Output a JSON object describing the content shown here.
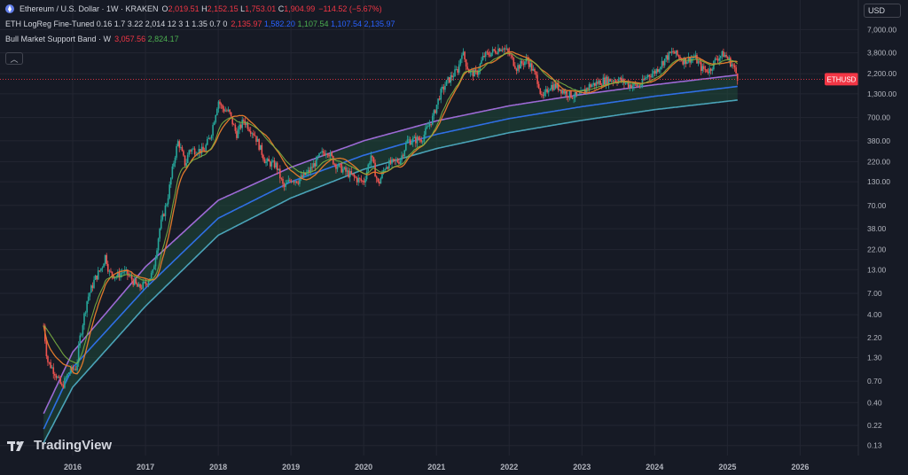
{
  "header": {
    "symbol_title": "Ethereum / U.S. Dollar · 1W · KRAKEN",
    "ohlc": [
      {
        "k": "O",
        "v": "2,019.51"
      },
      {
        "k": "H",
        "v": "2,152.15"
      },
      {
        "k": "L",
        "v": "1,753.01"
      },
      {
        "k": "C",
        "v": "1,904.99"
      }
    ],
    "change": "−114.52 (−5.67%)"
  },
  "indicators": [
    {
      "label": "ETH LogReg Fine-Tuned 0.16 1.7 3.22 2,014 12 3 1 1.35 0.7 0",
      "values": [
        {
          "v": "2,135.97",
          "color": "#f23645"
        },
        {
          "v": "1,582.20",
          "color": "#2962ff"
        },
        {
          "v": "1,107.54",
          "color": "#4caf50"
        },
        {
          "v": "1,107.54",
          "color": "#2962ff"
        },
        {
          "v": "2,135.97",
          "color": "#2962ff"
        }
      ]
    },
    {
      "label": "Bull Market Support Band · W",
      "values": [
        {
          "v": "3,057.56",
          "color": "#f23645"
        },
        {
          "v": "2,824.17",
          "color": "#4caf50"
        }
      ]
    }
  ],
  "currency": "USD",
  "brand": "TradingView",
  "colors": {
    "bg": "#161a25",
    "grid": "#232632",
    "axis_text": "#b2b5be",
    "up": "#26a69a",
    "down": "#ef5350",
    "price_label": "#f23645",
    "band_upper": "#9c6ad4",
    "band_mid": "#2f6fe4",
    "band_lower": "#4aa3b8",
    "band_fill": "#1f4a3a",
    "sma": "#e0792c",
    "ema": "#7cb342"
  },
  "chart_data": {
    "type": "candlestick",
    "scale": "log",
    "ylim": [
      0.1,
      10000
    ],
    "xlim": [
      2015.0,
      2026.8
    ],
    "x_ticks": [
      "2016",
      "2017",
      "2018",
      "2019",
      "2020",
      "2021",
      "2022",
      "2023",
      "2024",
      "2025",
      "2026"
    ],
    "y_ticks": [
      "7,000.00",
      "3,800.00",
      "2,200.00",
      "1,300.00",
      "700.00",
      "380.00",
      "220.00",
      "130.00",
      "70.00",
      "38.00",
      "22.00",
      "13.00",
      "7.00",
      "4.00",
      "2.20",
      "1.30",
      "0.70",
      "0.40",
      "0.22",
      "0.13"
    ],
    "y_tick_values": [
      7000,
      3800,
      2200,
      1300,
      700,
      380,
      220,
      130,
      70,
      38,
      22,
      13,
      7,
      4,
      2.2,
      1.3,
      0.7,
      0.4,
      0.22,
      0.13
    ],
    "last_price": {
      "label": "ETHUSD",
      "value": 1904.99,
      "text": "1,904.99"
    },
    "price_path": [
      [
        2015.6,
        3.0
      ],
      [
        2015.65,
        1.2
      ],
      [
        2015.75,
        0.9
      ],
      [
        2015.85,
        0.6
      ],
      [
        2015.95,
        0.9
      ],
      [
        2016.05,
        1.0
      ],
      [
        2016.1,
        2.2
      ],
      [
        2016.2,
        6.0
      ],
      [
        2016.3,
        10.0
      ],
      [
        2016.4,
        14.0
      ],
      [
        2016.45,
        19.0
      ],
      [
        2016.5,
        12.0
      ],
      [
        2016.6,
        11.0
      ],
      [
        2016.7,
        12.5
      ],
      [
        2016.8,
        10.5
      ],
      [
        2016.9,
        8.0
      ],
      [
        2017.0,
        9.0
      ],
      [
        2017.1,
        12.0
      ],
      [
        2017.2,
        40.0
      ],
      [
        2017.3,
        80.0
      ],
      [
        2017.4,
        250.0
      ],
      [
        2017.45,
        380.0
      ],
      [
        2017.55,
        200.0
      ],
      [
        2017.6,
        300.0
      ],
      [
        2017.7,
        300.0
      ],
      [
        2017.8,
        290.0
      ],
      [
        2017.9,
        450.0
      ],
      [
        2018.0,
        1100.0
      ],
      [
        2018.05,
        900.0
      ],
      [
        2018.15,
        800.0
      ],
      [
        2018.25,
        450.0
      ],
      [
        2018.35,
        650.0
      ],
      [
        2018.5,
        450.0
      ],
      [
        2018.65,
        220.0
      ],
      [
        2018.8,
        200.0
      ],
      [
        2018.9,
        110.0
      ],
      [
        2019.0,
        140.0
      ],
      [
        2019.1,
        135.0
      ],
      [
        2019.25,
        170.0
      ],
      [
        2019.4,
        260.0
      ],
      [
        2019.5,
        300.0
      ],
      [
        2019.6,
        210.0
      ],
      [
        2019.75,
        170.0
      ],
      [
        2019.9,
        140.0
      ],
      [
        2020.0,
        130.0
      ],
      [
        2020.1,
        260.0
      ],
      [
        2020.2,
        120.0
      ],
      [
        2020.3,
        200.0
      ],
      [
        2020.5,
        230.0
      ],
      [
        2020.6,
        380.0
      ],
      [
        2020.8,
        400.0
      ],
      [
        2020.95,
        700.0
      ],
      [
        2021.05,
        1300.0
      ],
      [
        2021.15,
        1800.0
      ],
      [
        2021.3,
        2500.0
      ],
      [
        2021.35,
        4000.0
      ],
      [
        2021.45,
        2300.0
      ],
      [
        2021.55,
        2200.0
      ],
      [
        2021.65,
        3500.0
      ],
      [
        2021.8,
        4000.0
      ],
      [
        2021.9,
        4500.0
      ],
      [
        2022.0,
        3700.0
      ],
      [
        2022.1,
        2600.0
      ],
      [
        2022.25,
        3200.0
      ],
      [
        2022.4,
        1800.0
      ],
      [
        2022.45,
        1100.0
      ],
      [
        2022.55,
        1600.0
      ],
      [
        2022.65,
        1600.0
      ],
      [
        2022.8,
        1300.0
      ],
      [
        2022.95,
        1200.0
      ],
      [
        2023.1,
        1600.0
      ],
      [
        2023.3,
        1850.0
      ],
      [
        2023.5,
        1900.0
      ],
      [
        2023.65,
        1650.0
      ],
      [
        2023.8,
        1600.0
      ],
      [
        2023.9,
        2100.0
      ],
      [
        2024.0,
        2300.0
      ],
      [
        2024.15,
        3300.0
      ],
      [
        2024.25,
        3900.0
      ],
      [
        2024.4,
        3100.0
      ],
      [
        2024.55,
        3400.0
      ],
      [
        2024.65,
        2500.0
      ],
      [
        2024.75,
        2400.0
      ],
      [
        2024.85,
        3300.0
      ],
      [
        2024.95,
        3700.0
      ],
      [
        2025.0,
        3300.0
      ],
      [
        2025.08,
        2700.0
      ],
      [
        2025.15,
        1904.99
      ]
    ],
    "series": [
      {
        "name": "",
        "kind": "upper",
        "start": 2015.55,
        "values_at": [
          [
            2015.6,
            0.3
          ],
          [
            2016.0,
            1.5
          ],
          [
            2017.0,
            14.0
          ],
          [
            2018.0,
            80.0
          ],
          [
            2019.0,
            190.0
          ],
          [
            2020.0,
            380.0
          ],
          [
            2021.0,
            640.0
          ],
          [
            2022.0,
            950.0
          ],
          [
            2023.0,
            1280.0
          ],
          [
            2024.0,
            1650.0
          ],
          [
            2025.15,
            2135.97
          ]
        ]
      },
      {
        "name": "",
        "kind": "mid",
        "start": 2015.55,
        "values_at": [
          [
            2015.6,
            0.2
          ],
          [
            2016.0,
            1.0
          ],
          [
            2017.0,
            8.0
          ],
          [
            2018.0,
            50.0
          ],
          [
            2019.0,
            130.0
          ],
          [
            2020.0,
            260.0
          ],
          [
            2021.0,
            450.0
          ],
          [
            2022.0,
            680.0
          ],
          [
            2023.0,
            930.0
          ],
          [
            2024.0,
            1220.0
          ],
          [
            2025.15,
            1582.2
          ]
        ]
      },
      {
        "name": "",
        "kind": "lower",
        "start": 2015.55,
        "values_at": [
          [
            2015.6,
            0.14
          ],
          [
            2016.0,
            0.6
          ],
          [
            2017.0,
            5.0
          ],
          [
            2018.0,
            32.0
          ],
          [
            2019.0,
            85.0
          ],
          [
            2020.0,
            180.0
          ],
          [
            2021.0,
            310.0
          ],
          [
            2022.0,
            470.0
          ],
          [
            2023.0,
            650.0
          ],
          [
            2024.0,
            860.0
          ],
          [
            2025.15,
            1107.54
          ]
        ]
      }
    ]
  }
}
